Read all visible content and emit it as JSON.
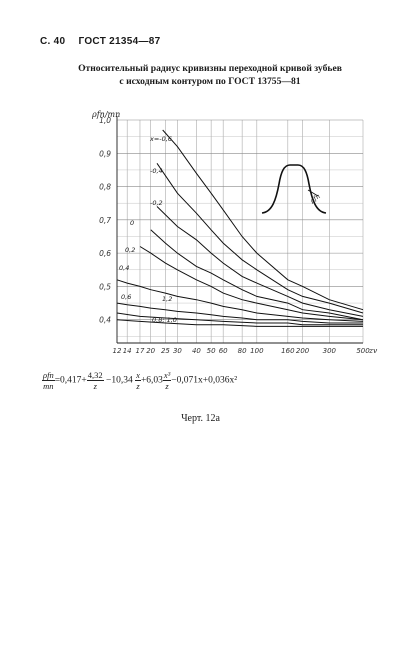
{
  "header": {
    "page": "С. 40",
    "standard": "ГОСТ 21354—87"
  },
  "title": {
    "line1": "Относительный радиус кривизны переходной кривой зубьев",
    "line2": "с исходным контуром по ГОСТ 13755—81"
  },
  "chart_data": {
    "type": "line",
    "ylabel": "ρfn/mn",
    "xlabel": "zv",
    "x_scale": "log",
    "x_ticks": [
      12,
      14,
      17,
      20,
      25,
      30,
      40,
      50,
      60,
      80,
      100,
      160,
      200,
      300,
      500
    ],
    "x_tick_labels": [
      "12",
      "14",
      "17",
      "20",
      "25",
      "30",
      "40",
      "50",
      "60",
      "80",
      "100",
      "160",
      "200",
      "300",
      "500"
    ],
    "y_ticks": [
      0.4,
      0.5,
      0.6,
      0.7,
      0.8,
      0.9,
      1.0
    ],
    "y_tick_labels": [
      "0,4",
      "0,5",
      "0,6",
      "0,7",
      "0,8",
      "0,9",
      "1,0"
    ],
    "ylim": [
      0.33,
      1.0
    ],
    "xlim": [
      12,
      500
    ],
    "grid": true,
    "series": [
      {
        "name": "x=-0,6",
        "x": [
          24,
          30,
          40,
          50,
          60,
          80,
          100,
          160,
          200,
          300,
          500
        ],
        "y": [
          0.97,
          0.92,
          0.84,
          0.78,
          0.73,
          0.65,
          0.6,
          0.52,
          0.5,
          0.46,
          0.43
        ]
      },
      {
        "name": "-0,4",
        "x": [
          22,
          30,
          40,
          50,
          60,
          80,
          100,
          160,
          200,
          300,
          500
        ],
        "y": [
          0.87,
          0.78,
          0.72,
          0.67,
          0.63,
          0.58,
          0.55,
          0.49,
          0.47,
          0.45,
          0.42
        ]
      },
      {
        "name": "-0,2",
        "x": [
          22,
          30,
          40,
          50,
          60,
          80,
          100,
          160,
          200,
          300,
          500
        ],
        "y": [
          0.74,
          0.68,
          0.64,
          0.6,
          0.57,
          0.53,
          0.51,
          0.47,
          0.45,
          0.43,
          0.41
        ]
      },
      {
        "name": "0",
        "x": [
          20,
          25,
          30,
          40,
          50,
          60,
          80,
          100,
          160,
          200,
          300,
          500
        ],
        "y": [
          0.67,
          0.63,
          0.6,
          0.56,
          0.54,
          0.52,
          0.49,
          0.47,
          0.45,
          0.43,
          0.42,
          0.4
        ]
      },
      {
        "name": "0,2",
        "x": [
          17,
          20,
          25,
          30,
          40,
          50,
          60,
          80,
          100,
          160,
          200,
          300,
          500
        ],
        "y": [
          0.62,
          0.6,
          0.57,
          0.55,
          0.52,
          0.5,
          0.48,
          0.46,
          0.45,
          0.43,
          0.42,
          0.41,
          0.4
        ]
      },
      {
        "name": "0,4",
        "x": [
          12,
          14,
          17,
          20,
          25,
          30,
          40,
          50,
          60,
          80,
          100,
          160,
          200,
          300,
          500
        ],
        "y": [
          0.52,
          0.51,
          0.5,
          0.49,
          0.48,
          0.47,
          0.46,
          0.45,
          0.44,
          0.43,
          0.42,
          0.41,
          0.405,
          0.4,
          0.395
        ]
      },
      {
        "name": "0,6",
        "x": [
          12,
          14,
          17,
          20,
          25,
          30,
          40,
          50,
          60,
          80,
          100,
          160,
          200,
          300,
          500
        ],
        "y": [
          0.45,
          0.445,
          0.44,
          0.435,
          0.43,
          0.425,
          0.42,
          0.415,
          0.41,
          0.405,
          0.4,
          0.4,
          0.395,
          0.39,
          0.39
        ]
      },
      {
        "name": "1,2",
        "x": [
          12,
          17,
          25,
          40,
          60,
          100,
          160,
          200,
          300,
          500
        ],
        "y": [
          0.42,
          0.41,
          0.405,
          0.4,
          0.395,
          0.39,
          0.39,
          0.385,
          0.385,
          0.385
        ]
      },
      {
        "name": "0,8; 1,0",
        "x": [
          12,
          17,
          25,
          40,
          60,
          100,
          160,
          200,
          300,
          500
        ],
        "y": [
          0.4,
          0.395,
          0.39,
          0.385,
          0.385,
          0.38,
          0.38,
          0.38,
          0.38,
          0.38
        ]
      }
    ],
    "inset_label": "ρfn"
  },
  "formula": {
    "lhs_num": "ρfn",
    "lhs_den": "mn",
    "part1": "=0,417+",
    "f1_num": "4,32",
    "f1_den": "z",
    "part2": "−10,34",
    "f2_num": "x",
    "f2_den": "z",
    "part3": "+6,03",
    "f3_num": "x³",
    "f3_den": "z",
    "part4": "−0,071x+0,036x²"
  },
  "caption": "Черт. 12а"
}
